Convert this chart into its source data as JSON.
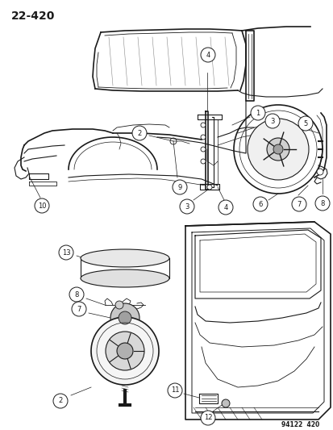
{
  "title_number": "22-420",
  "part_number": "94122  420",
  "background_color": "#ffffff",
  "line_color": "#1a1a1a",
  "fig_width": 4.14,
  "fig_height": 5.33,
  "dpi": 100
}
